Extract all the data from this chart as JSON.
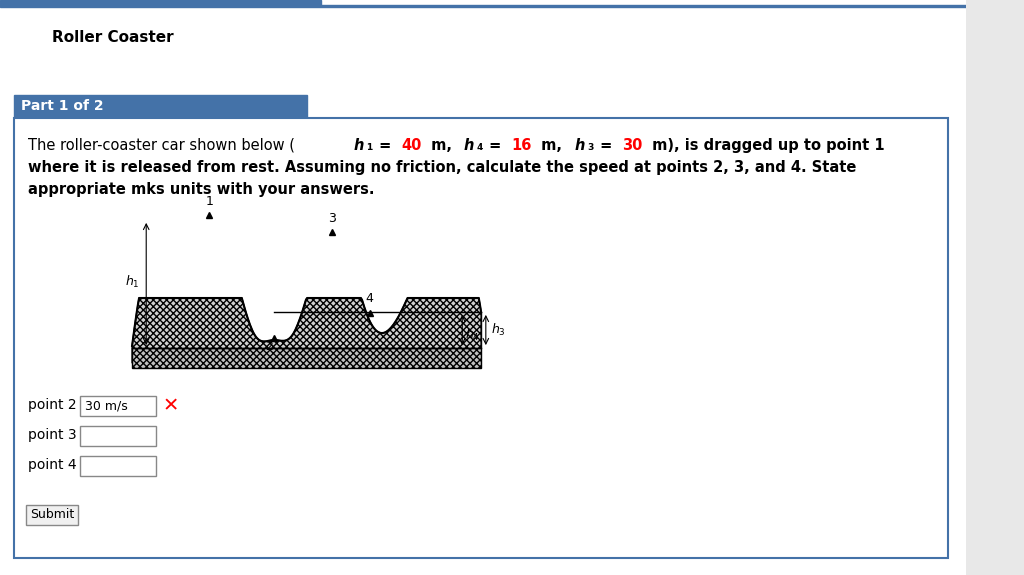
{
  "title": "Roller Coaster",
  "part_label": "Part 1 of 2",
  "part_bg_color": "#4472a8",
  "part_text_color": "#ffffff",
  "header_bar_color": "#4472a8",
  "header_line_color": "#4472a8",
  "bg_color": "#ffffff",
  "outer_bg": "#f0f0f0",
  "body_text_line1_parts": [
    {
      "text": "The roller-coaster car shown below (",
      "color": "#000000",
      "bold": true,
      "italic": false
    },
    {
      "text": "h",
      "color": "#000000",
      "bold": true,
      "italic": true
    },
    {
      "text": "₁",
      "color": "#000000",
      "bold": true,
      "italic": false
    },
    {
      "text": " = ",
      "color": "#000000",
      "bold": true,
      "italic": false
    },
    {
      "text": "40",
      "color": "#ff0000",
      "bold": true,
      "italic": false
    },
    {
      "text": " m, ",
      "color": "#000000",
      "bold": true,
      "italic": false
    },
    {
      "text": "h",
      "color": "#000000",
      "bold": true,
      "italic": true
    },
    {
      "text": "₄",
      "color": "#000000",
      "bold": true,
      "italic": false
    },
    {
      "text": " = ",
      "color": "#000000",
      "bold": true,
      "italic": false
    },
    {
      "text": "16",
      "color": "#ff0000",
      "bold": true,
      "italic": false
    },
    {
      "text": " m, ",
      "color": "#000000",
      "bold": true,
      "italic": false
    },
    {
      "text": "h",
      "color": "#000000",
      "bold": true,
      "italic": true
    },
    {
      "text": "₃",
      "color": "#000000",
      "bold": true,
      "italic": false
    },
    {
      "text": " = ",
      "color": "#000000",
      "bold": true,
      "italic": false
    },
    {
      "text": "30",
      "color": "#ff0000",
      "bold": true,
      "italic": false
    },
    {
      "text": " m), is dragged up to point 1",
      "color": "#000000",
      "bold": true,
      "italic": false
    }
  ],
  "body_text_line2": "where it is released from rest. Assuming no friction, calculate the speed at points 2, 3, and 4. State",
  "body_text_line3": "appropriate mks units with your answers.",
  "point2_label": "point 2",
  "point2_value": "30 m/s",
  "point3_label": "point 3",
  "point4_label": "point 4",
  "submit_label": "Submit",
  "content_border_color": "#4472a8",
  "input_border_color": "#aaaaaa",
  "x_mark_color": "#ff0000"
}
